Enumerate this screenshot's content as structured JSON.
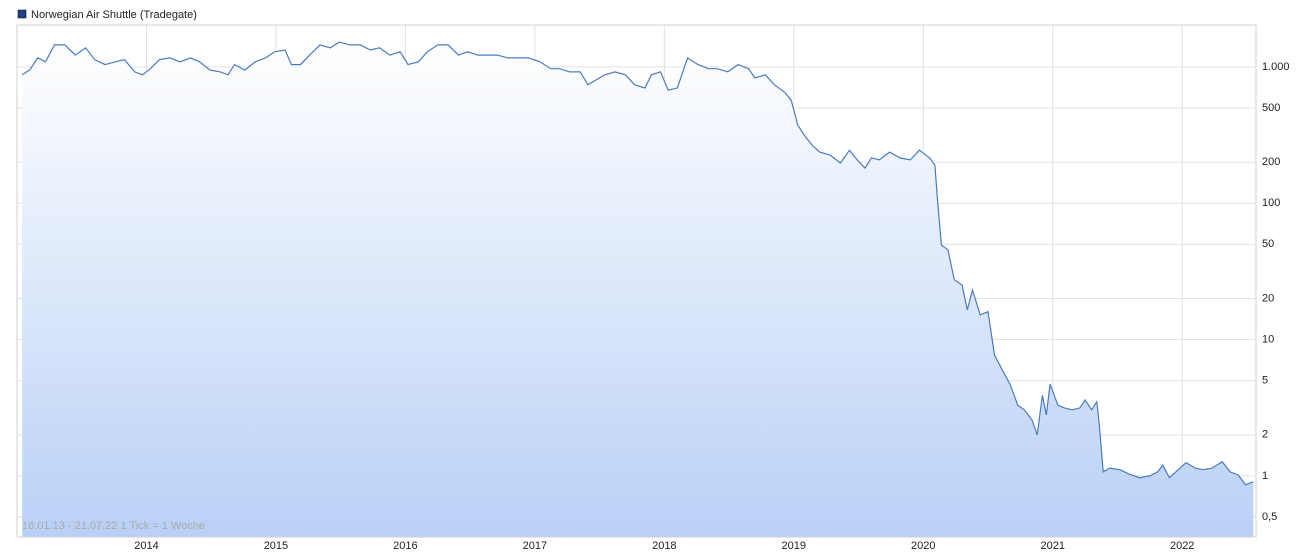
{
  "chart_data": {
    "type": "line",
    "footnote": "16.01.13 - 21.07.22   1 Tick = 1 Woche",
    "log_scale": true,
    "grid": true,
    "legend": "top-left",
    "legend_marker_color": "#1f3f8f",
    "x": [
      2013.04,
      2013.1,
      2013.16,
      2013.22,
      2013.29,
      2013.37,
      2013.45,
      2013.53,
      2013.6,
      2013.68,
      2013.76,
      2013.83,
      2013.91,
      2013.97,
      2014.03,
      2014.1,
      2014.18,
      2014.26,
      2014.34,
      2014.41,
      2014.49,
      2014.57,
      2014.63,
      2014.68,
      2014.76,
      2014.84,
      2014.92,
      2014.99,
      2015.07,
      2015.12,
      2015.19,
      2015.26,
      2015.34,
      2015.42,
      2015.49,
      2015.57,
      2015.65,
      2015.73,
      2015.8,
      2015.88,
      2015.96,
      2016.02,
      2016.1,
      2016.17,
      2016.25,
      2016.33,
      2016.41,
      2016.48,
      2016.56,
      2016.64,
      2016.71,
      2016.79,
      2016.87,
      2016.95,
      2017.04,
      2017.12,
      2017.19,
      2017.27,
      2017.35,
      2017.41,
      2017.46,
      2017.54,
      2017.62,
      2017.7,
      2017.77,
      2017.85,
      2017.9,
      2017.97,
      2018.03,
      2018.1,
      2018.18,
      2018.26,
      2018.34,
      2018.41,
      2018.49,
      2018.57,
      2018.65,
      2018.7,
      2018.78,
      2018.85,
      2018.93,
      2018.98,
      2019.03,
      2019.08,
      2019.14,
      2019.2,
      2019.28,
      2019.36,
      2019.43,
      2019.49,
      2019.55,
      2019.6,
      2019.66,
      2019.74,
      2019.82,
      2019.9,
      2019.97,
      2020.05,
      2020.09,
      2020.11,
      2020.14,
      2020.19,
      2020.24,
      2020.3,
      2020.34,
      2020.38,
      2020.44,
      2020.5,
      2020.55,
      2020.61,
      2020.67,
      2020.73,
      2020.78,
      2020.84,
      2020.88,
      2020.92,
      2020.95,
      2020.98,
      2021.04,
      2021.09,
      2021.15,
      2021.21,
      2021.25,
      2021.3,
      2021.34,
      2021.36,
      2021.39,
      2021.44,
      2021.52,
      2021.59,
      2021.67,
      2021.75,
      2021.81,
      2021.85,
      2021.9,
      2021.97,
      2022.03,
      2022.1,
      2022.16,
      2022.23,
      2022.31,
      2022.37,
      2022.43,
      2022.49,
      2022.54,
      2022.55
    ],
    "series": [
      {
        "name": "Norwegian Air Shuttle (Tradegate)",
        "color": "#4a7bc0",
        "values": [
          875,
          952,
          1166,
          1090,
          1452,
          1450,
          1220,
          1380,
          1130,
          1040,
          1090,
          1130,
          920,
          875,
          970,
          1130,
          1165,
          1090,
          1165,
          1090,
          950,
          920,
          875,
          1040,
          950,
          1090,
          1165,
          1290,
          1330,
          1040,
          1040,
          1220,
          1450,
          1380,
          1520,
          1450,
          1450,
          1330,
          1380,
          1220,
          1290,
          1040,
          1090,
          1290,
          1450,
          1450,
          1220,
          1290,
          1220,
          1220,
          1220,
          1165,
          1165,
          1165,
          1090,
          970,
          970,
          920,
          920,
          740,
          790,
          875,
          920,
          875,
          740,
          700,
          875,
          920,
          675,
          700,
          1165,
          1040,
          970,
          970,
          920,
          1040,
          970,
          830,
          875,
          740,
          650,
          570,
          376,
          316,
          268,
          237,
          226,
          197,
          245,
          208,
          181,
          215,
          208,
          237,
          215,
          208,
          245,
          215,
          190,
          106,
          49.4,
          45.5,
          27.5,
          25.1,
          16.5,
          23.1,
          15.2,
          16.0,
          7.7,
          6.0,
          4.7,
          3.3,
          3.05,
          2.57,
          2.0,
          3.9,
          2.8,
          4.7,
          3.3,
          3.15,
          3.05,
          3.15,
          3.6,
          3.05,
          3.5,
          2.37,
          1.07,
          1.14,
          1.11,
          1.03,
          0.97,
          1.0,
          1.07,
          1.2,
          0.97,
          1.11,
          1.25,
          1.14,
          1.11,
          1.14,
          1.27,
          1.07,
          1.02,
          0.86,
          0.9,
          0.9
        ]
      }
    ],
    "xlim": [
      2013.0,
      2022.57
    ],
    "xticks": [
      2014,
      2015,
      2016,
      2017,
      2018,
      2019,
      2020,
      2021,
      2022
    ],
    "ylim": [
      0.356,
      2030
    ],
    "yticks": [
      {
        "value": 0.5,
        "label": "0,5"
      },
      1,
      2,
      5,
      10,
      20,
      50,
      100,
      200,
      500,
      {
        "value": 1000,
        "label": "1.000"
      }
    ]
  }
}
